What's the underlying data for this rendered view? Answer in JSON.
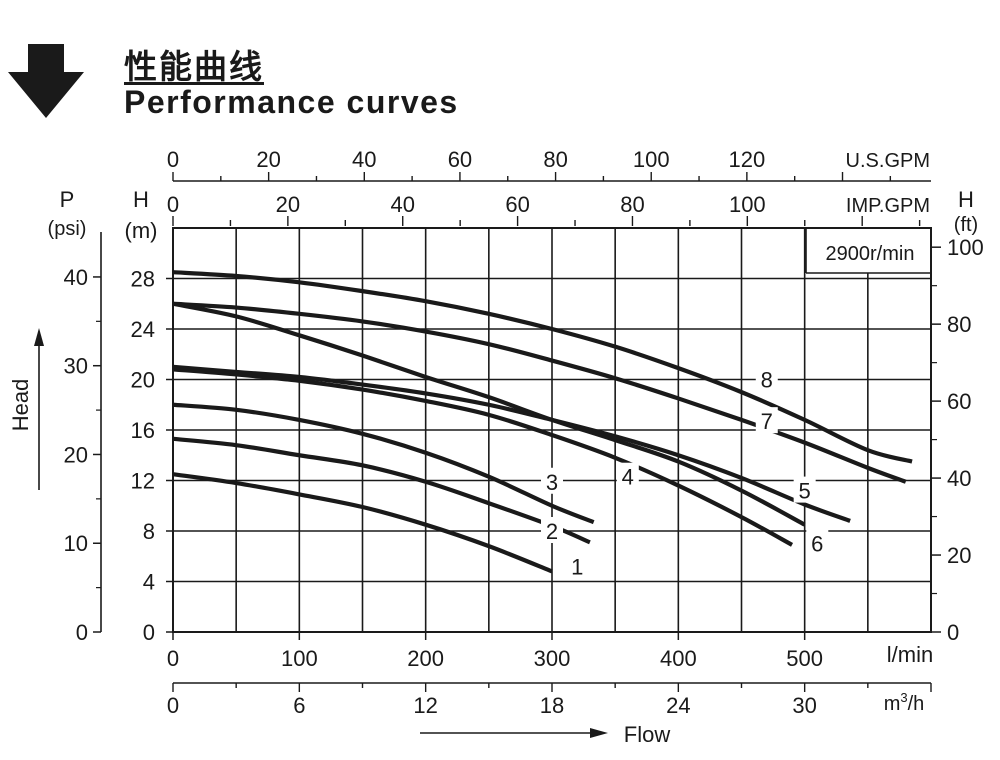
{
  "header": {
    "title_cn": "性能曲线",
    "title_en": "Performance curves"
  },
  "chart_data": {
    "type": "line",
    "annotation": "2900r/min",
    "x_axis": {
      "label": "l/min",
      "range": [
        0,
        600
      ],
      "ticks": [
        0,
        100,
        200,
        300,
        400,
        500
      ]
    },
    "x_axis_m3h": {
      "label": "m3/h",
      "ticks": [
        0,
        6,
        12,
        18,
        24,
        30
      ]
    },
    "x_axis_usgpm": {
      "label": "U.S.GPM",
      "ticks": [
        0,
        20,
        40,
        60,
        80,
        100,
        120
      ]
    },
    "x_axis_impgpm": {
      "label": "IMP.GPM",
      "ticks": [
        0,
        20,
        40,
        60,
        80,
        100
      ]
    },
    "y_axis_m": {
      "label_top": "H",
      "label_unit": "(m)",
      "range": [
        0,
        28
      ],
      "ticks": [
        0,
        4,
        8,
        12,
        16,
        20,
        24,
        28
      ]
    },
    "y_axis_psi": {
      "label_top": "P",
      "label_unit": "(psi)",
      "ticks": [
        0,
        10,
        20,
        30,
        40
      ]
    },
    "y_axis_ft": {
      "label_top": "H",
      "label_unit": "(ft)",
      "ticks": [
        0,
        20,
        40,
        60,
        80,
        100
      ]
    },
    "ylabel": "Head",
    "xlabel": "Flow",
    "grid": true,
    "series": [
      {
        "name": "1",
        "x": [
          0,
          50,
          100,
          150,
          200,
          250,
          300
        ],
        "y": [
          12.5,
          11.8,
          10.9,
          9.9,
          8.5,
          6.8,
          4.8
        ]
      },
      {
        "name": "2",
        "x": [
          0,
          50,
          100,
          150,
          200,
          250,
          300,
          330
        ],
        "y": [
          15.3,
          14.8,
          14.0,
          13.2,
          11.9,
          10.2,
          8.4,
          7.1
        ]
      },
      {
        "name": "3",
        "x": [
          0,
          50,
          100,
          150,
          200,
          250,
          300,
          333
        ],
        "y": [
          18.0,
          17.6,
          16.8,
          15.7,
          14.2,
          12.3,
          10.0,
          8.7
        ]
      },
      {
        "name": "4",
        "x": [
          0,
          50,
          100,
          150,
          200,
          250,
          300,
          350,
          400,
          450,
          490
        ],
        "y": [
          20.8,
          20.4,
          19.9,
          19.2,
          18.3,
          17.2,
          15.6,
          13.8,
          11.6,
          9.1,
          6.9
        ]
      },
      {
        "name": "5",
        "x": [
          0,
          50,
          100,
          150,
          200,
          250,
          300,
          350,
          400,
          450,
          500,
          536
        ],
        "y": [
          21.0,
          20.6,
          20.2,
          19.6,
          18.9,
          18.0,
          16.8,
          15.5,
          14.0,
          12.2,
          10.1,
          8.8
        ]
      },
      {
        "name": "6",
        "x": [
          0,
          50,
          100,
          150,
          200,
          250,
          300,
          350,
          400,
          450,
          500
        ],
        "y": [
          26.0,
          25.0,
          23.5,
          21.9,
          20.2,
          18.6,
          16.8,
          15.2,
          13.5,
          11.2,
          8.5
        ]
      },
      {
        "name": "7",
        "x": [
          0,
          50,
          100,
          150,
          200,
          250,
          300,
          350,
          400,
          450,
          500,
          550,
          580
        ],
        "y": [
          26.0,
          25.7,
          25.2,
          24.6,
          23.8,
          22.8,
          21.5,
          20.1,
          18.5,
          16.8,
          15.0,
          13.0,
          11.9
        ]
      },
      {
        "name": "8",
        "x": [
          0,
          50,
          100,
          150,
          200,
          250,
          300,
          350,
          400,
          450,
          500,
          550,
          585
        ],
        "y": [
          28.5,
          28.2,
          27.7,
          27.0,
          26.2,
          25.2,
          24.0,
          22.6,
          20.9,
          19.0,
          16.8,
          14.4,
          13.5
        ]
      }
    ]
  }
}
